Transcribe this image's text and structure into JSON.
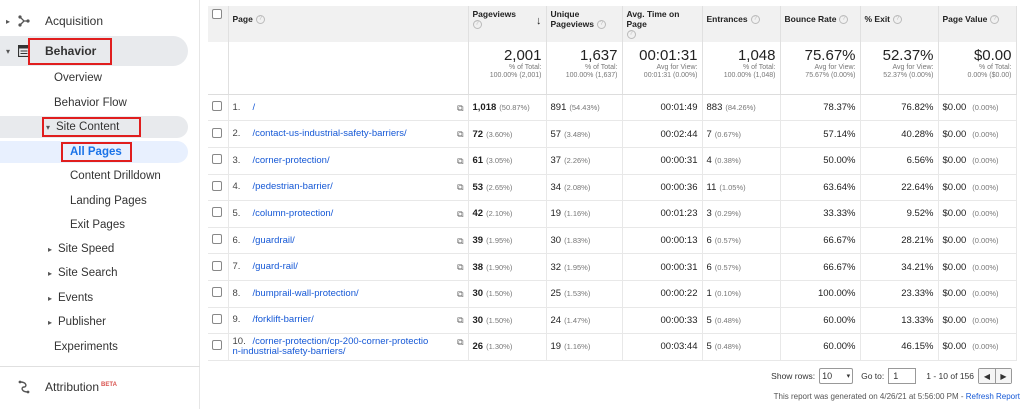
{
  "sidebar": {
    "acquisition": "Acquisition",
    "behavior": "Behavior",
    "overview": "Overview",
    "behavior_flow": "Behavior Flow",
    "site_content": "Site Content",
    "all_pages": "All Pages",
    "content_drilldown": "Content Drilldown",
    "landing_pages": "Landing Pages",
    "exit_pages": "Exit Pages",
    "site_speed": "Site Speed",
    "site_search": "Site Search",
    "events": "Events",
    "publisher": "Publisher",
    "experiments": "Experiments",
    "attribution": "Attribution",
    "beta": "BETA"
  },
  "table": {
    "headers": {
      "page": "Page",
      "pageviews": "Pageviews",
      "unique_pageviews": "Unique Pageviews",
      "avg_time": "Avg. Time on Page",
      "entrances": "Entrances",
      "bounce_rate": "Bounce Rate",
      "exit": "% Exit",
      "page_value": "Page Value"
    },
    "totals": {
      "pageviews": "2,001",
      "pageviews_sub1": "% of Total:",
      "pageviews_sub2": "100.00% (2,001)",
      "unique": "1,637",
      "unique_sub1": "% of Total:",
      "unique_sub2": "100.00% (1,637)",
      "avg_time": "00:01:31",
      "avg_time_sub1": "Avg for View:",
      "avg_time_sub2": "00:01:31 (0.00%)",
      "entrances": "1,048",
      "entrances_sub1": "% of Total:",
      "entrances_sub2": "100.00% (1,048)",
      "bounce": "75.67%",
      "bounce_sub1": "Avg for View:",
      "bounce_sub2": "75.67% (0.00%)",
      "exit": "52.37%",
      "exit_sub1": "Avg for View:",
      "exit_sub2": "52.37% (0.00%)",
      "value": "$0.00",
      "value_sub1": "% of Total:",
      "value_sub2": "0.00% ($0.00)"
    },
    "rows": [
      {
        "n": "1.",
        "page": "/",
        "pv": "1,018",
        "pv_pct": "(50.87%)",
        "upv": "891",
        "upv_pct": "(54.43%)",
        "time": "00:01:49",
        "ent": "883",
        "ent_pct": "(84.26%)",
        "bounce": "78.37%",
        "exit": "76.82%",
        "val": "$0.00",
        "val_pct": "(0.00%)"
      },
      {
        "n": "2.",
        "page": "/contact-us-industrial-safety-barriers/",
        "pv": "72",
        "pv_pct": "(3.60%)",
        "upv": "57",
        "upv_pct": "(3.48%)",
        "time": "00:02:44",
        "ent": "7",
        "ent_pct": "(0.67%)",
        "bounce": "57.14%",
        "exit": "40.28%",
        "val": "$0.00",
        "val_pct": "(0.00%)"
      },
      {
        "n": "3.",
        "page": "/corner-protection/",
        "pv": "61",
        "pv_pct": "(3.05%)",
        "upv": "37",
        "upv_pct": "(2.26%)",
        "time": "00:00:31",
        "ent": "4",
        "ent_pct": "(0.38%)",
        "bounce": "50.00%",
        "exit": "6.56%",
        "val": "$0.00",
        "val_pct": "(0.00%)"
      },
      {
        "n": "4.",
        "page": "/pedestrian-barrier/",
        "pv": "53",
        "pv_pct": "(2.65%)",
        "upv": "34",
        "upv_pct": "(2.08%)",
        "time": "00:00:36",
        "ent": "11",
        "ent_pct": "(1.05%)",
        "bounce": "63.64%",
        "exit": "22.64%",
        "val": "$0.00",
        "val_pct": "(0.00%)"
      },
      {
        "n": "5.",
        "page": "/column-protection/",
        "pv": "42",
        "pv_pct": "(2.10%)",
        "upv": "19",
        "upv_pct": "(1.16%)",
        "time": "00:01:23",
        "ent": "3",
        "ent_pct": "(0.29%)",
        "bounce": "33.33%",
        "exit": "9.52%",
        "val": "$0.00",
        "val_pct": "(0.00%)"
      },
      {
        "n": "6.",
        "page": "/guardrail/",
        "pv": "39",
        "pv_pct": "(1.95%)",
        "upv": "30",
        "upv_pct": "(1.83%)",
        "time": "00:00:13",
        "ent": "6",
        "ent_pct": "(0.57%)",
        "bounce": "66.67%",
        "exit": "28.21%",
        "val": "$0.00",
        "val_pct": "(0.00%)"
      },
      {
        "n": "7.",
        "page": "/guard-rail/",
        "pv": "38",
        "pv_pct": "(1.90%)",
        "upv": "32",
        "upv_pct": "(1.95%)",
        "time": "00:00:31",
        "ent": "6",
        "ent_pct": "(0.57%)",
        "bounce": "66.67%",
        "exit": "34.21%",
        "val": "$0.00",
        "val_pct": "(0.00%)"
      },
      {
        "n": "8.",
        "page": "/bumprail-wall-protection/",
        "pv": "30",
        "pv_pct": "(1.50%)",
        "upv": "25",
        "upv_pct": "(1.53%)",
        "time": "00:00:22",
        "ent": "1",
        "ent_pct": "(0.10%)",
        "bounce": "100.00%",
        "exit": "23.33%",
        "val": "$0.00",
        "val_pct": "(0.00%)"
      },
      {
        "n": "9.",
        "page": "/forklift-barrier/",
        "pv": "30",
        "pv_pct": "(1.50%)",
        "upv": "24",
        "upv_pct": "(1.47%)",
        "time": "00:00:33",
        "ent": "5",
        "ent_pct": "(0.48%)",
        "bounce": "60.00%",
        "exit": "13.33%",
        "val": "$0.00",
        "val_pct": "(0.00%)"
      },
      {
        "n": "10.",
        "page": "/corner-protection/cp-200-corner-protectio\nn-industrial-safety-barriers/",
        "pv": "26",
        "pv_pct": "(1.30%)",
        "upv": "19",
        "upv_pct": "(1.16%)",
        "time": "00:03:44",
        "ent": "5",
        "ent_pct": "(0.48%)",
        "bounce": "60.00%",
        "exit": "46.15%",
        "val": "$0.00",
        "val_pct": "(0.00%)"
      }
    ]
  },
  "footer": {
    "show_rows": "Show rows:",
    "rows_value": "10",
    "go_to": "Go to:",
    "go_to_value": "1",
    "range": "1 - 10 of 156",
    "generated": "This report was generated on 4/26/21 at 5:56:00 PM -",
    "refresh": "Refresh Report"
  }
}
